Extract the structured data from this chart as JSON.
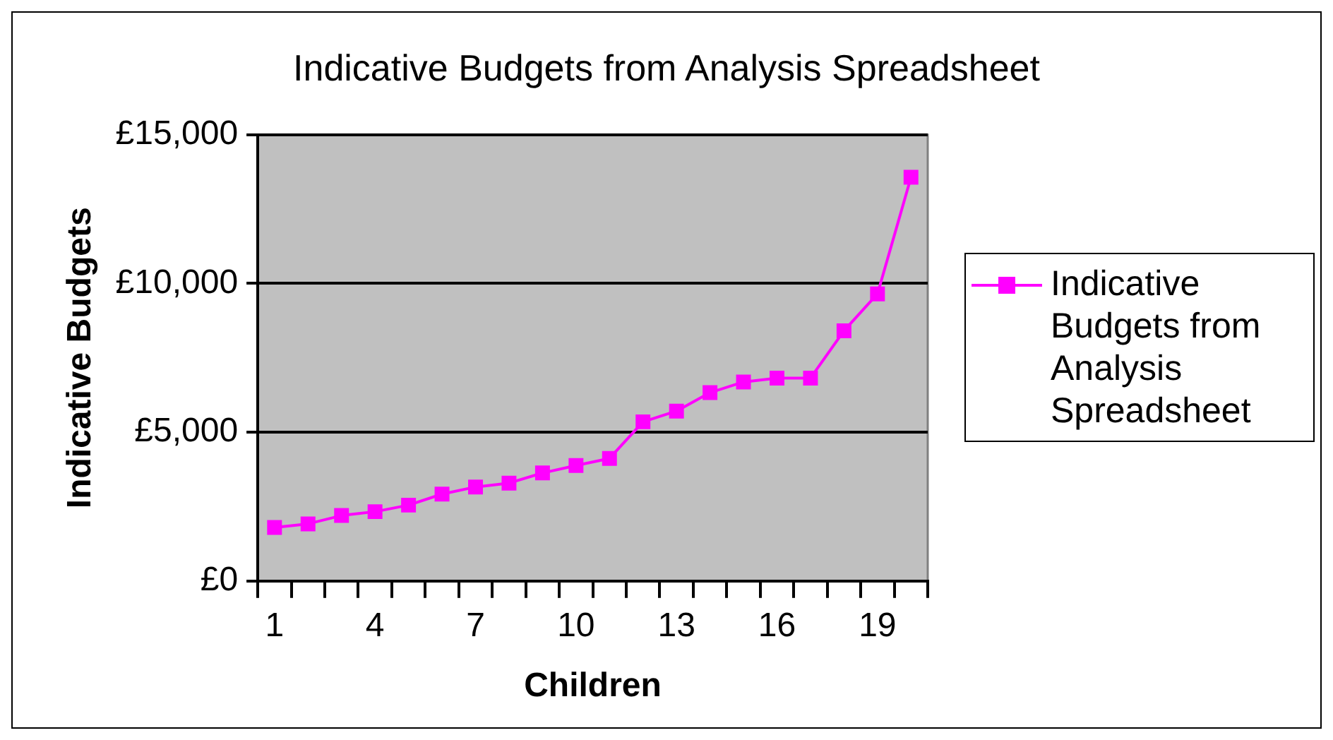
{
  "chart_data": {
    "type": "line",
    "title": "Indicative Budgets from Analysis Spreadsheet",
    "xlabel": "Children",
    "ylabel": "Indicative Budgets",
    "categories": [
      "1",
      null,
      null,
      "4",
      null,
      null,
      "7",
      null,
      null,
      "10",
      null,
      null,
      "13",
      null,
      null,
      "16",
      null,
      null,
      "19",
      null
    ],
    "series": [
      {
        "name": "Indicative Budgets from Analysis Spreadsheet",
        "color": "#ff00ff",
        "values": [
          1800,
          1920,
          2200,
          2330,
          2550,
          2920,
          3160,
          3290,
          3630,
          3880,
          4120,
          5350,
          5710,
          6330,
          6690,
          6820,
          6820,
          8410,
          9650,
          13570
        ]
      }
    ],
    "ylim": [
      0,
      15000
    ],
    "yticks": [
      {
        "value": 0,
        "label": "£0"
      },
      {
        "value": 5000,
        "label": "£5,000"
      },
      {
        "value": 10000,
        "label": "£10,000"
      },
      {
        "value": 15000,
        "label": "£15,000"
      }
    ],
    "grid": "y",
    "legend": "right",
    "marker": "square",
    "line_style": "solid"
  }
}
